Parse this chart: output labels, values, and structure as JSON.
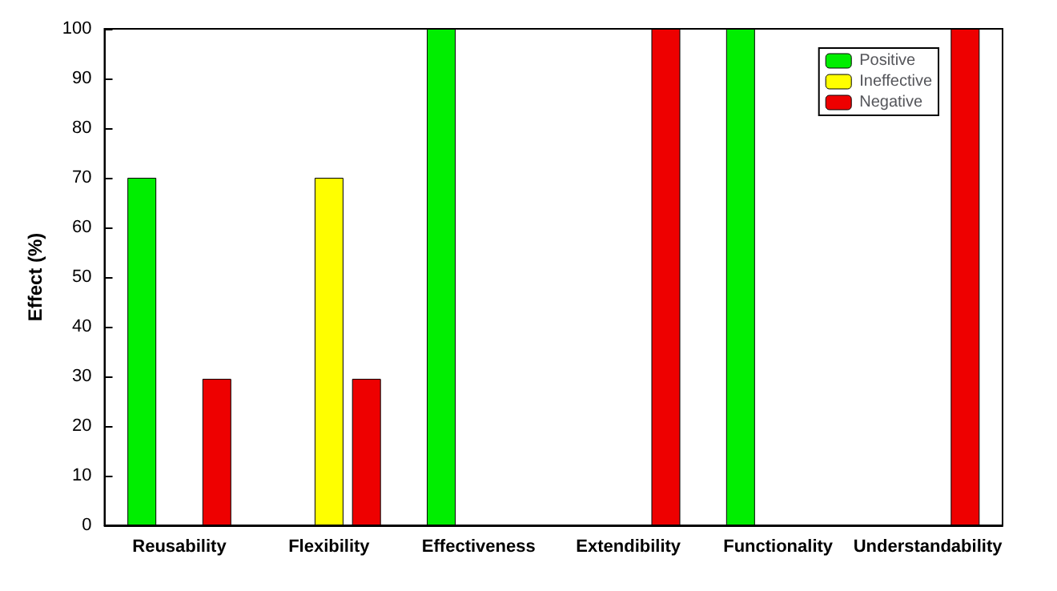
{
  "chart_data": {
    "type": "bar",
    "ylabel": "Effect (%)",
    "categories": [
      "Reusability",
      "Flexibility",
      "Effectiveness",
      "Extendibility",
      "Functionality",
      "Understandability"
    ],
    "series": [
      {
        "name": "Positive",
        "color": "#00ee00",
        "values": [
          70,
          null,
          100,
          null,
          100,
          null
        ]
      },
      {
        "name": "Ineffective",
        "color": "#ffff00",
        "values": [
          null,
          70,
          null,
          null,
          null,
          null
        ]
      },
      {
        "name": "Negative",
        "color": "#ee0000",
        "values": [
          29.5,
          29.5,
          null,
          100,
          null,
          100
        ]
      }
    ],
    "ylim": [
      0,
      100
    ],
    "yticks": [
      0,
      10,
      20,
      30,
      40,
      50,
      60,
      70,
      80,
      90,
      100
    ],
    "grid": false,
    "legend": "top right"
  }
}
